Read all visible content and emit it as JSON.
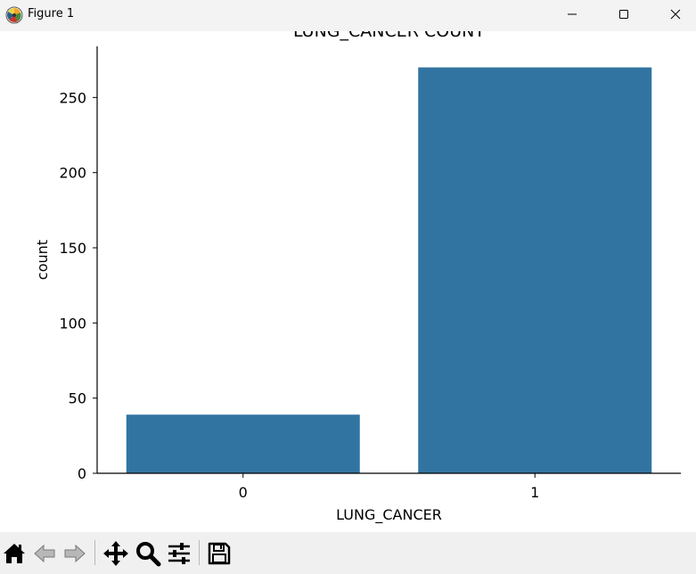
{
  "window": {
    "title": "Figure 1",
    "controls": [
      "minimize-icon",
      "maximize-icon",
      "close-icon"
    ]
  },
  "toolbar": {
    "tools": [
      {
        "name": "home-icon",
        "enabled": true
      },
      {
        "name": "back-arrow-icon",
        "enabled": false
      },
      {
        "name": "forward-arrow-icon",
        "enabled": false
      },
      {
        "name": "pan-icon",
        "enabled": true
      },
      {
        "name": "zoom-icon",
        "enabled": true
      },
      {
        "name": "configure-subplots-icon",
        "enabled": true
      },
      {
        "name": "save-icon",
        "enabled": true
      }
    ]
  },
  "chart_data": {
    "type": "bar",
    "title": "LUNG_CANCER COUNT",
    "xlabel": "LUNG_CANCER",
    "ylabel": "count",
    "categories": [
      "0",
      "1"
    ],
    "values": [
      39,
      270
    ],
    "ylim": [
      0,
      284
    ],
    "yticks": [
      0,
      50,
      100,
      150,
      200,
      250
    ],
    "bar_color": "#3274a1",
    "grid": false,
    "legend": "none"
  }
}
